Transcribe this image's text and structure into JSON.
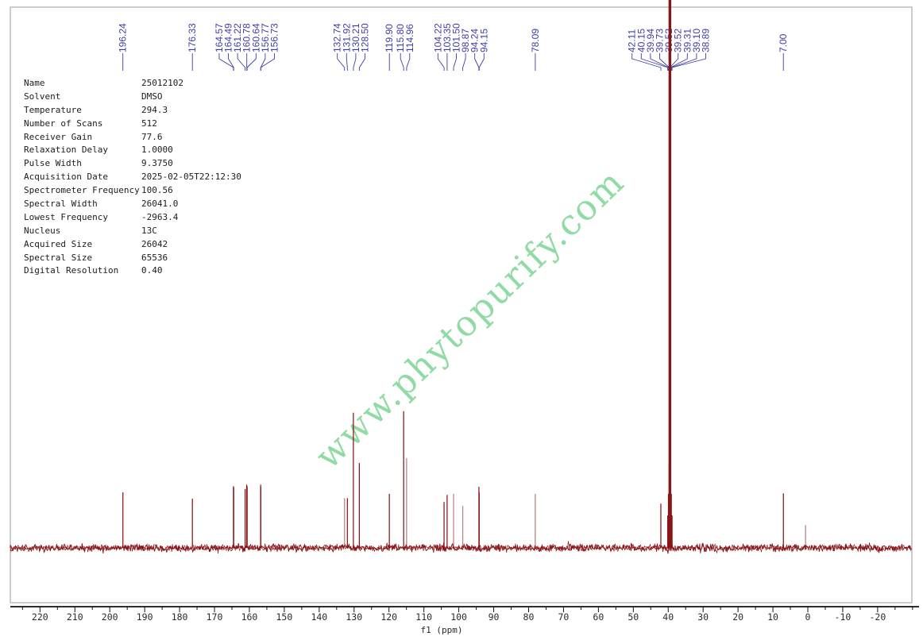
{
  "watermark": {
    "text": "www.phytopurify.com"
  },
  "parameters": {
    "rows": [
      {
        "label": "Name",
        "value": "25012102"
      },
      {
        "label": "Solvent",
        "value": "DMSO"
      },
      {
        "label": "Temperature",
        "value": "294.3"
      },
      {
        "label": "Number of Scans",
        "value": "512"
      },
      {
        "label": "Receiver Gain",
        "value": "77.6"
      },
      {
        "label": "Relaxation Delay",
        "value": "1.0000"
      },
      {
        "label": "Pulse Width",
        "value": "9.3750"
      },
      {
        "label": "Acquisition Date",
        "value": "2025-02-05T22:12:30"
      },
      {
        "label": "Spectrometer Frequency",
        "value": "100.56"
      },
      {
        "label": "Spectral Width",
        "value": "26041.0"
      },
      {
        "label": "Lowest Frequency",
        "value": "-2963.4"
      },
      {
        "label": "Nucleus",
        "value": "13C"
      },
      {
        "label": "Acquired Size",
        "value": "26042"
      },
      {
        "label": "Spectral Size",
        "value": "65536"
      },
      {
        "label": "Digital Resolution",
        "value": "0.40"
      }
    ]
  },
  "chart_data": {
    "type": "line",
    "description": "13C NMR spectrum with peak picking",
    "xlabel": "f1 (ppm)",
    "x_axis": {
      "min": -30,
      "max": 228,
      "reversed": true,
      "major_tick_step": 10,
      "minor_tick_step": 5,
      "major_tick_first": 220,
      "major_tick_last": -20
    },
    "axis_tick_labels": [
      "220",
      "210",
      "200",
      "190",
      "180",
      "170",
      "160",
      "150",
      "140",
      "130",
      "120",
      "110",
      "100",
      "90",
      "80",
      "70",
      "60",
      "50",
      "40",
      "30",
      "20",
      "10",
      "0",
      "-10",
      "-20"
    ],
    "peaks": [
      {
        "ppm": 196.24,
        "label": "196.24",
        "rel_intensity": 0.103,
        "shade": "dark"
      },
      {
        "ppm": 176.33,
        "label": "176.33",
        "rel_intensity": 0.091,
        "shade": "dark"
      },
      {
        "ppm": 164.57,
        "label": "164.57",
        "rel_intensity": 0.114,
        "shade": "dark"
      },
      {
        "ppm": 164.49,
        "label": "164.49",
        "rel_intensity": 0.112,
        "shade": "dark"
      },
      {
        "ppm": 161.22,
        "label": "161.22",
        "rel_intensity": 0.109,
        "shade": "dark"
      },
      {
        "ppm": 160.78,
        "label": "160.78",
        "rel_intensity": 0.117,
        "shade": "dark"
      },
      {
        "ppm": 160.64,
        "label": "160.64",
        "rel_intensity": 0.114,
        "shade": "dark"
      },
      {
        "ppm": 156.77,
        "label": "156.77",
        "rel_intensity": 0.117,
        "shade": "dark"
      },
      {
        "ppm": 156.73,
        "label": "156.73",
        "rel_intensity": 0.112,
        "shade": "dark"
      },
      {
        "ppm": 132.74,
        "label": "132.74",
        "rel_intensity": 0.092,
        "shade": "light"
      },
      {
        "ppm": 131.92,
        "label": "131.92",
        "rel_intensity": 0.092,
        "shade": "dark"
      },
      {
        "ppm": 130.21,
        "label": "130.21",
        "rel_intensity": 0.25,
        "shade": "dark"
      },
      {
        "ppm": 128.5,
        "label": "128.50",
        "rel_intensity": 0.157,
        "shade": "dark"
      },
      {
        "ppm": 119.9,
        "label": "119.90",
        "rel_intensity": 0.1,
        "shade": "dark"
      },
      {
        "ppm": 115.8,
        "label": "115.80",
        "rel_intensity": 0.253,
        "shade": "dark"
      },
      {
        "ppm": 114.96,
        "label": "114.96",
        "rel_intensity": 0.166,
        "shade": "light"
      },
      {
        "ppm": 104.22,
        "label": "104.22",
        "rel_intensity": 0.085,
        "shade": "dark"
      },
      {
        "ppm": 103.35,
        "label": "103.35",
        "rel_intensity": 0.098,
        "shade": "dark"
      },
      {
        "ppm": 101.5,
        "label": "101.50",
        "rel_intensity": 0.1,
        "shade": "light"
      },
      {
        "ppm": 98.87,
        "label": "98.87",
        "rel_intensity": 0.078,
        "shade": "light"
      },
      {
        "ppm": 94.24,
        "label": "94.24",
        "rel_intensity": 0.113,
        "shade": "dark"
      },
      {
        "ppm": 94.15,
        "label": "94.15",
        "rel_intensity": 0.103,
        "shade": "dark"
      },
      {
        "ppm": 78.09,
        "label": "78.09",
        "rel_intensity": 0.1,
        "shade": "light"
      },
      {
        "ppm": 42.11,
        "label": "42.11",
        "rel_intensity": 0.082,
        "shade": "dark"
      },
      {
        "ppm": 40.15,
        "label": "40.15",
        "rel_intensity": 0.06,
        "shade": "dark"
      },
      {
        "ppm": 39.94,
        "label": "39.94",
        "rel_intensity": 0.1,
        "shade": "dark"
      },
      {
        "ppm": 39.73,
        "label": "39.73",
        "rel_intensity": 0.155,
        "shade": "dark"
      },
      {
        "ppm": 39.52,
        "label": "39.52",
        "rel_intensity": 1.0,
        "shade": "dark",
        "clipped": true
      },
      {
        "ppm": 39.52,
        "label": "39.52",
        "rel_intensity": 0.155,
        "shade": "dark"
      },
      {
        "ppm": 39.31,
        "label": "39.31",
        "rel_intensity": 0.155,
        "shade": "dark"
      },
      {
        "ppm": 39.1,
        "label": "39.10",
        "rel_intensity": 0.1,
        "shade": "dark"
      },
      {
        "ppm": 38.89,
        "label": "38.89",
        "rel_intensity": 0.06,
        "shade": "dark"
      },
      {
        "ppm": 7.0,
        "label": "7.00",
        "rel_intensity": 0.101,
        "shade": "dark"
      }
    ],
    "unlabeled_peaks": [
      {
        "ppm": 0.65,
        "label": "",
        "rel_intensity": 0.042,
        "shade": "light"
      }
    ],
    "baseline_noise": {
      "amplitude_rel": 0.008
    },
    "legend": "none",
    "grid": "off"
  },
  "colors": {
    "trace_dark": "#8a1517",
    "trace_light": "#b58382",
    "peak_label": "#3d3da8",
    "watermark": "#85d89a",
    "axis_text": "#2a2a2a",
    "table_text": "#1c1c1c",
    "frame_border": "#ababab",
    "axis_line": "#111111"
  }
}
